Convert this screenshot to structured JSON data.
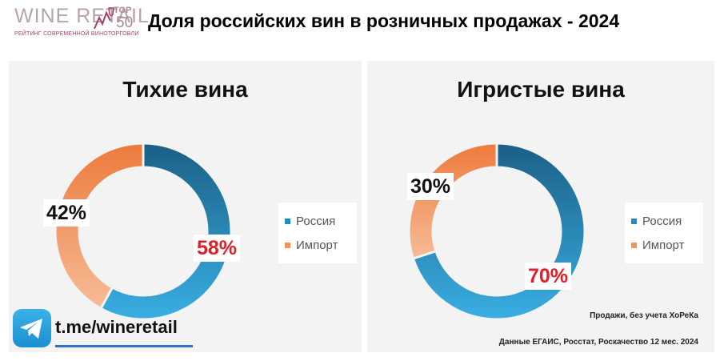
{
  "logo": {
    "main": "WINE RETAIL",
    "top": "TOP",
    "num": "50",
    "sub": "РЕЙТИНГ СОВРЕМЕННОЙ ВИНОТОРГОВЛИ"
  },
  "header": {
    "title": "Доля российских вин в розничных продажах - 2024"
  },
  "colors": {
    "russia": "#1e6f9c",
    "import": "#ee8844",
    "panel_bg": "#f3f3f3",
    "highlight": "#e31e24"
  },
  "chart_data": [
    {
      "type": "pie",
      "title": "Тихие вина",
      "categories": [
        "Россия",
        "Импорт"
      ],
      "values": [
        58,
        42
      ],
      "labels": [
        "58%",
        "42%"
      ],
      "legend": [
        "Россия",
        "Импорт"
      ],
      "legend_position": "right"
    },
    {
      "type": "pie",
      "title": "Игристые вина",
      "categories": [
        "Россия",
        "Импорт"
      ],
      "values": [
        70,
        30
      ],
      "labels": [
        "70%",
        "30%"
      ],
      "legend": [
        "Россия",
        "Импорт"
      ],
      "legend_position": "right"
    }
  ],
  "notes": {
    "sales": "Продажи, без учета ХоРеКа",
    "source": "Данные ЕГАИС, Росстат, Роскачество 12 мес. 2024"
  },
  "telegram": {
    "icon": "telegram-icon",
    "link": "t.me/wineretail"
  }
}
